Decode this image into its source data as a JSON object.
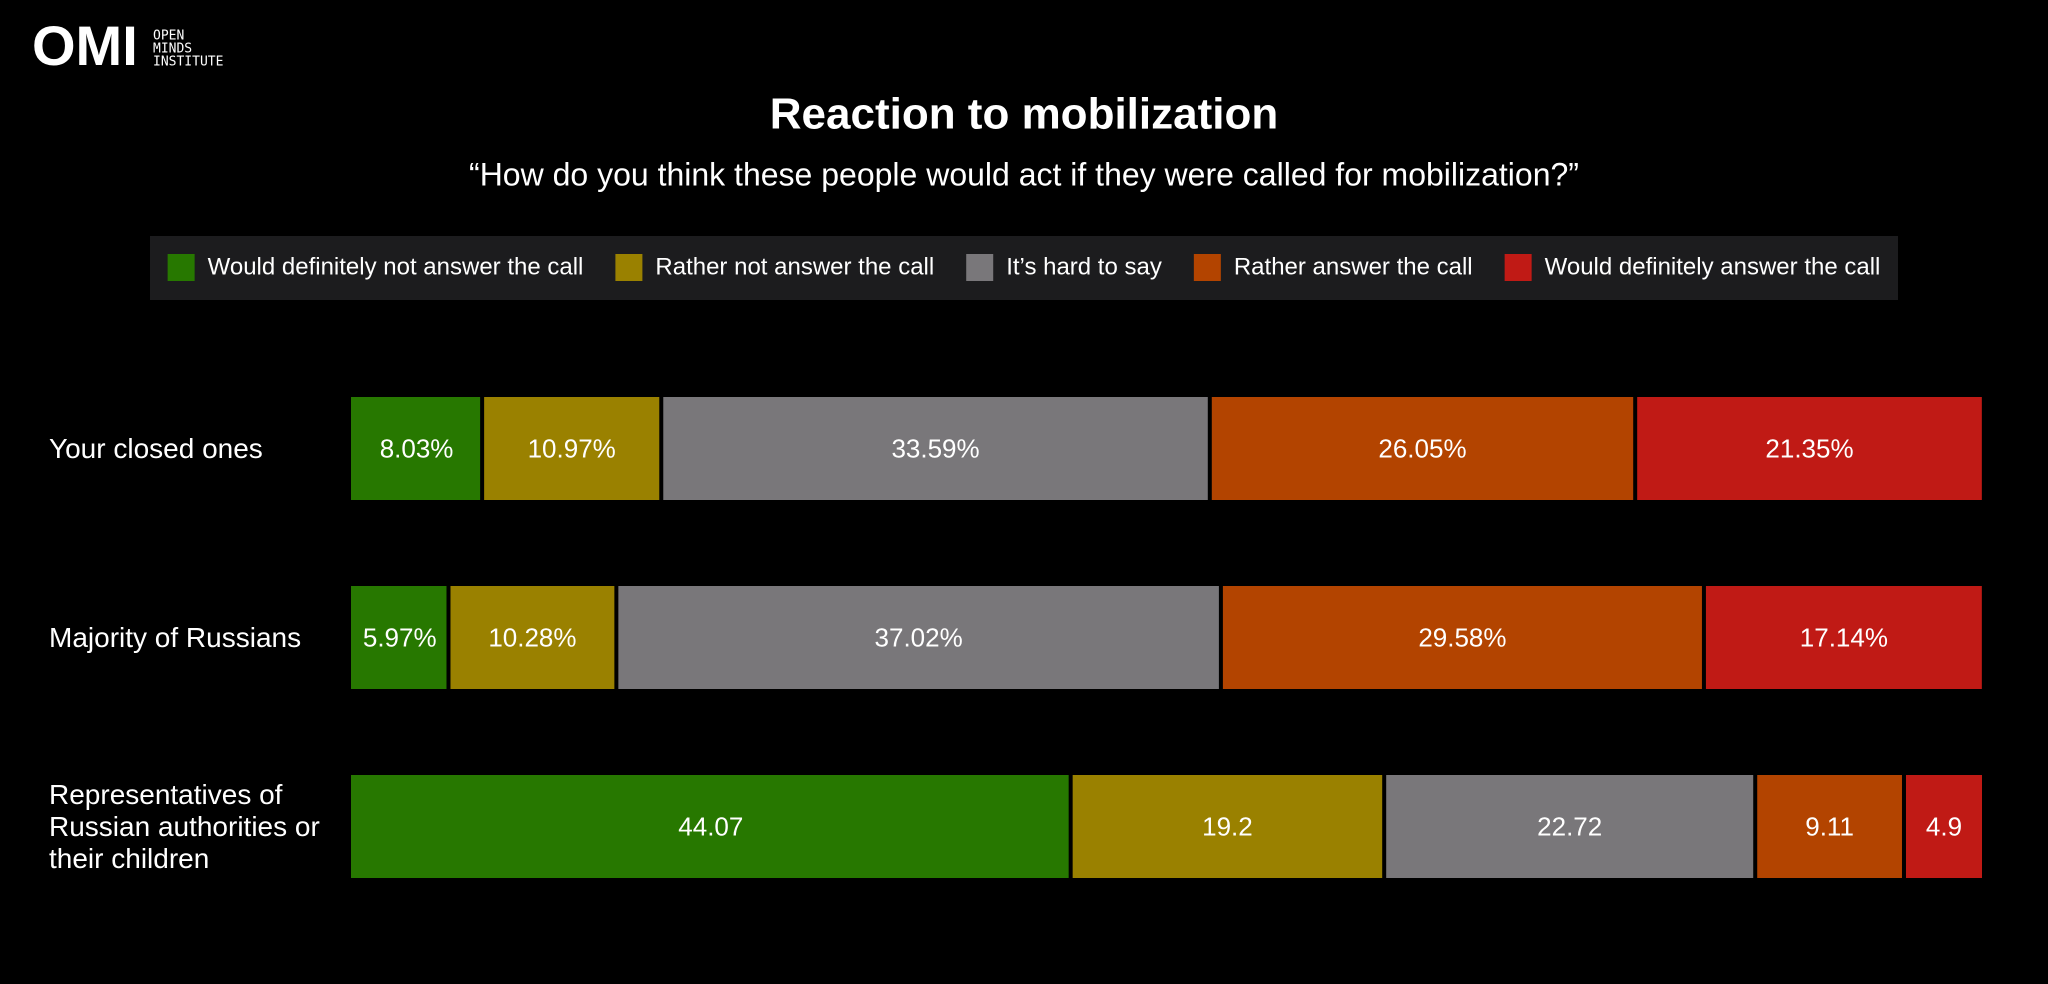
{
  "logo": {
    "mark": "OMI",
    "lines": [
      "OPEN",
      "MINDS",
      "INSTITUTE"
    ]
  },
  "chart_data": {
    "type": "stacked-bar-horizontal",
    "title": "Reaction to mobilization",
    "subtitle": "“How do you think these people would act if they were called for mobilization?”",
    "categories": [
      "Your closed ones",
      "Majority of Russians",
      "Representatives of Russian authorities or their children"
    ],
    "xlim": [
      0,
      100
    ],
    "legend": "top",
    "series": [
      {
        "name": "Would definitely not answer the call",
        "color": "#277800",
        "values": [
          8.03,
          5.97,
          44.07
        ],
        "value_labels": [
          "8.03%",
          "5.97%",
          "44.07"
        ]
      },
      {
        "name": "Rather not answer the call",
        "color": "#9a8100",
        "values": [
          10.97,
          10.28,
          19.2
        ],
        "value_labels": [
          "10.97%",
          "10.28%",
          "19.2"
        ]
      },
      {
        "name": "It’s hard to say",
        "color": "#79777a",
        "values": [
          33.59,
          37.02,
          22.72
        ],
        "value_labels": [
          "33.59%",
          "37.02%",
          "22.72"
        ]
      },
      {
        "name": "Rather answer the call",
        "color": "#b34400",
        "values": [
          26.05,
          29.58,
          9.11
        ],
        "value_labels": [
          "26.05%",
          "29.58%",
          "9.11"
        ]
      },
      {
        "name": "Would definitely answer the call",
        "color": "#c01a15",
        "values": [
          21.35,
          17.14,
          4.9
        ],
        "value_labels": [
          "21.35%",
          "17.14%",
          "4.9"
        ]
      }
    ]
  }
}
